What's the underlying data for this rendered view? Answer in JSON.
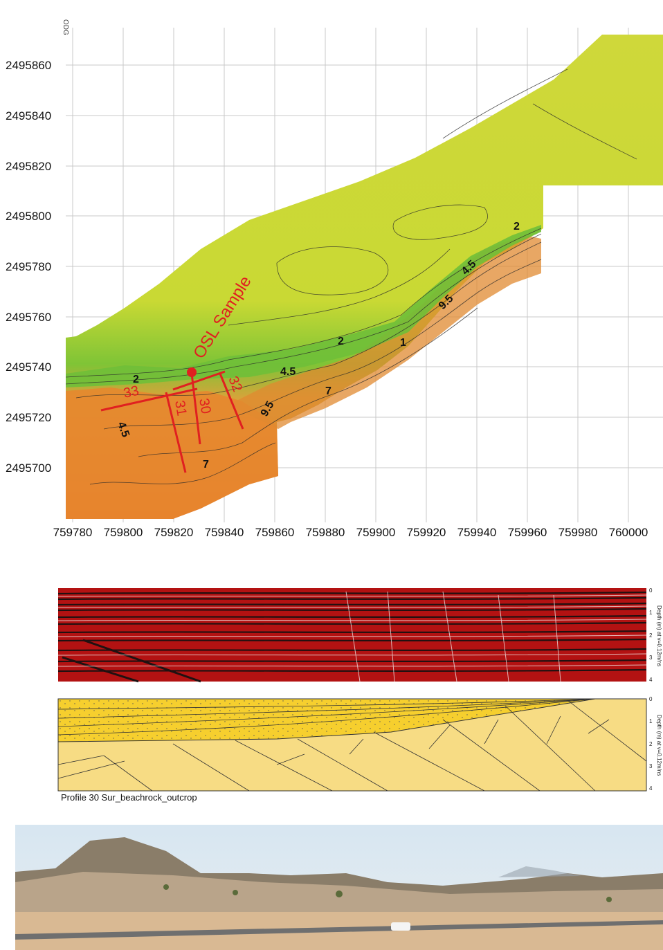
{
  "map": {
    "y_ticks": [
      "2495860",
      "2495840",
      "2495820",
      "2495800",
      "2495780",
      "2495760",
      "2495740",
      "2495720",
      "2495700"
    ],
    "x_ticks": [
      "759780",
      "759800",
      "759820",
      "759840",
      "759860",
      "759880",
      "759900",
      "759920",
      "759940",
      "759960",
      "759980",
      "760000"
    ],
    "contour_labels": [
      "2",
      "2",
      "2",
      "4.5",
      "4.5",
      "4.5",
      "7",
      "7",
      "1",
      "9.5",
      "9.5"
    ],
    "profile_labels": [
      "33",
      "31",
      "30",
      "32"
    ],
    "osl_label": "OSL Sample",
    "colors": {
      "high": "#d9e23a",
      "mid": "#7fc436",
      "low": "#e47a2a",
      "profile": "#e02020"
    }
  },
  "gpr": {
    "depth_ticks": [
      "0",
      "1",
      "2",
      "3",
      "4"
    ],
    "depth_axis_label": "Depth (m) at v=0.12m/ns",
    "interpretation_depth_ticks": [
      "0",
      "1",
      "2",
      "3",
      "4"
    ],
    "interpretation_axis_label": "Depth (m) at v=0.12m/ns",
    "caption": "Profile 30 Sur_beachrock_outcrop",
    "colors": {
      "radar_bg": "#b31212",
      "sand": "#f6cf2e",
      "rock": "#f7dc84"
    }
  },
  "photo": {
    "description_colors": {
      "sky": "#dde9f2",
      "hill": "#7a6d5c",
      "ground": "#d9b993"
    }
  }
}
